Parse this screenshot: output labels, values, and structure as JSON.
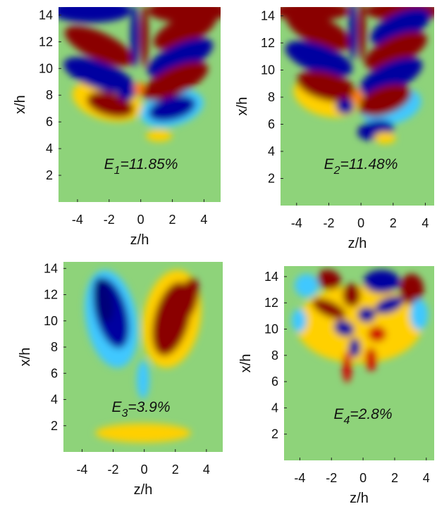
{
  "chart_data": [
    {
      "type": "heatmap",
      "xlabel": "z/h",
      "ylabel": "x/h",
      "annotation": {
        "symbol": "E",
        "index": "1",
        "text": "=11.85%"
      },
      "xlim": [
        -5.2,
        5.05
      ],
      "ylim": [
        0,
        14.6
      ],
      "xticks": [
        -4,
        -2,
        0,
        2,
        4
      ],
      "yticks": [
        2,
        4,
        6,
        8,
        10,
        12,
        14
      ]
    },
    {
      "type": "heatmap",
      "xlabel": "z/h",
      "ylabel": "x/h",
      "annotation": {
        "symbol": "E",
        "index": "2",
        "text": "=11.48%"
      },
      "xlim": [
        -5,
        4.55
      ],
      "ylim": [
        0,
        14.65
      ],
      "xticks": [
        -4,
        -2,
        0,
        2,
        4
      ],
      "yticks": [
        2,
        4,
        6,
        8,
        10,
        12,
        14
      ]
    },
    {
      "type": "heatmap",
      "xlabel": "z/h",
      "ylabel": "x/h",
      "annotation": {
        "symbol": "E",
        "index": "3",
        "text": "=3.9%"
      },
      "xlim": [
        -5.2,
        5.05
      ],
      "ylim": [
        0,
        14.5
      ],
      "xticks": [
        -4,
        -2,
        0,
        2,
        4
      ],
      "yticks": [
        2,
        4,
        6,
        8,
        10,
        12,
        14
      ]
    },
    {
      "type": "heatmap",
      "xlabel": "z/h",
      "ylabel": "x/h",
      "annotation": {
        "symbol": "E",
        "index": "4",
        "text": "=2.8%"
      },
      "xlim": [
        -5,
        4.5
      ],
      "ylim": [
        0,
        14.8
      ],
      "xticks": [
        -4,
        -2,
        0,
        2,
        4
      ],
      "yticks": [
        2,
        4,
        6,
        8,
        10,
        12,
        14
      ]
    }
  ]
}
